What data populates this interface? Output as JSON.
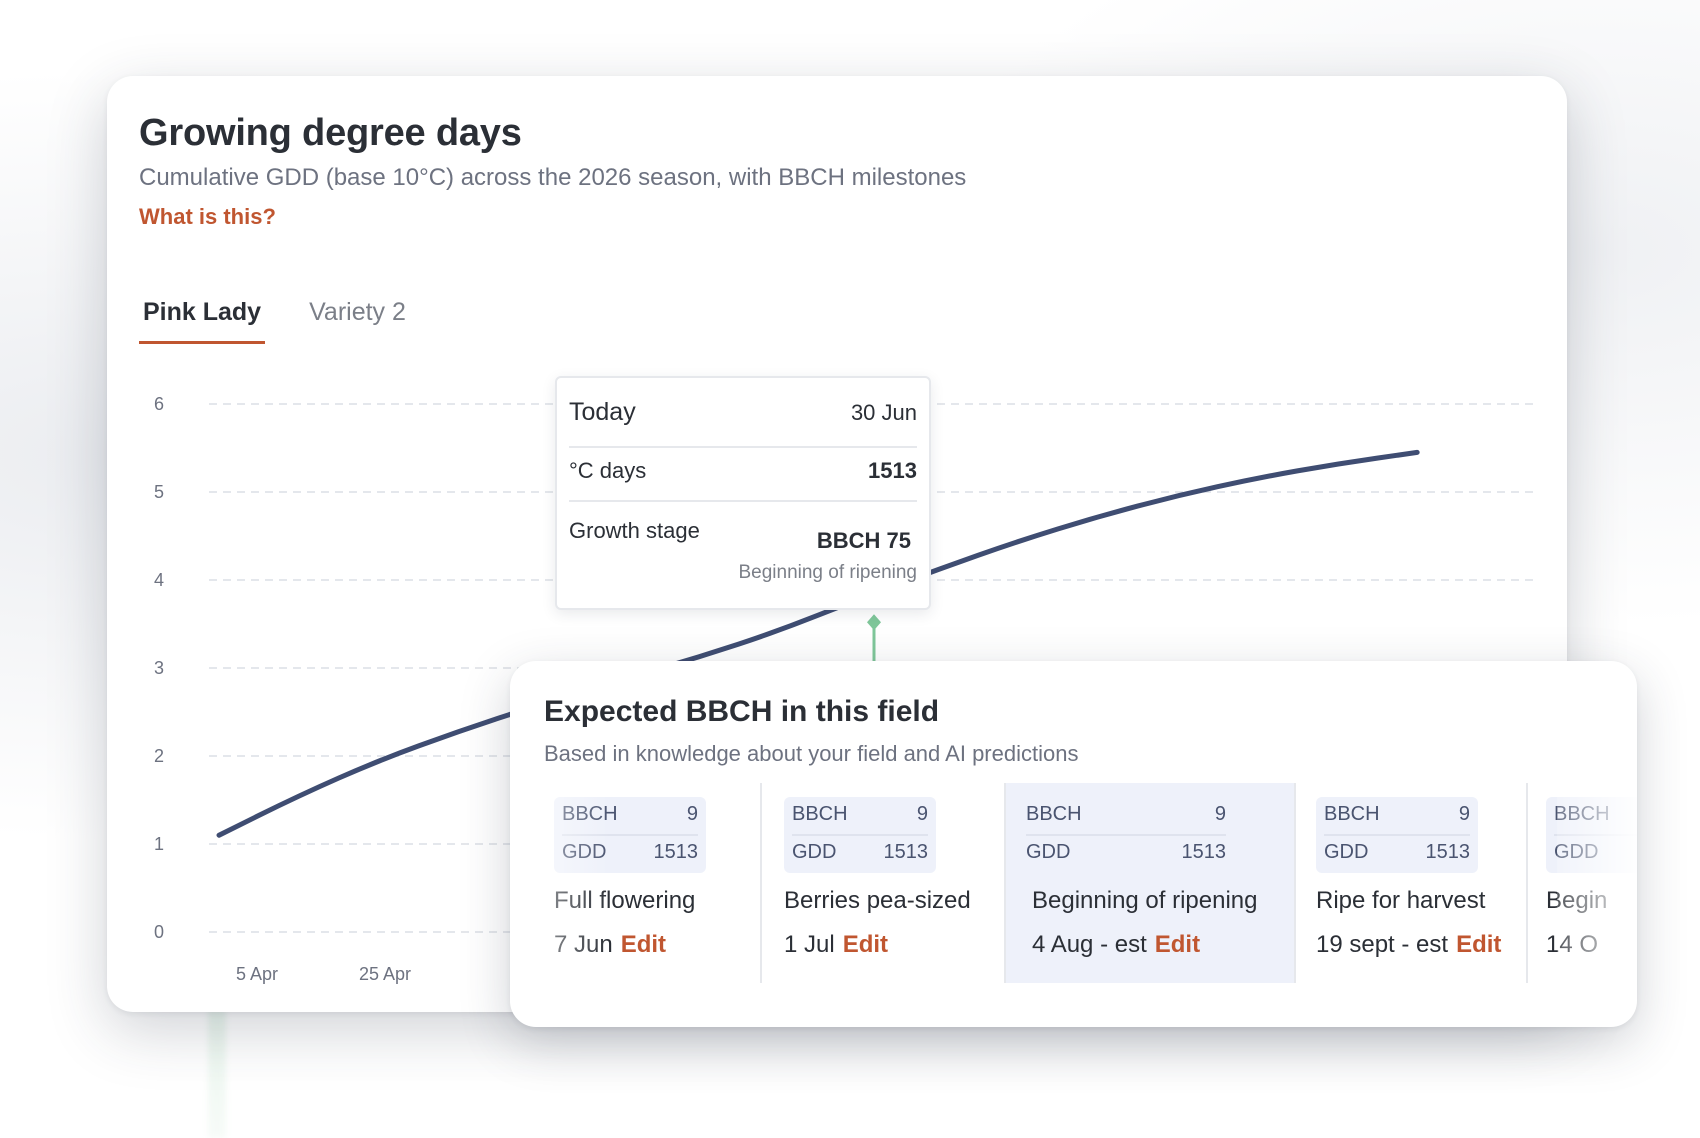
{
  "card": {
    "title": "Growing degree days",
    "subtitle": "Cumulative GDD (base 10°C) across the 2026 season, with BBCH milestones",
    "help_link": "What is this?"
  },
  "tabs": [
    {
      "label": "Pink Lady",
      "active": true
    },
    {
      "label": "Variety 2",
      "active": false
    }
  ],
  "chart_data": {
    "type": "line",
    "y_ticks": [
      "0",
      "1",
      "2",
      "3",
      "4",
      "5",
      "6"
    ],
    "ylim": [
      0,
      6
    ],
    "x_ticks": [
      "5 Apr",
      "25 Apr"
    ],
    "grid": true,
    "line_color": "#3f4d72",
    "marker_color": "#7fc79a",
    "series": [
      {
        "points": [
          {
            "d": 0,
            "y": 1.1
          },
          {
            "d": 20,
            "y": 1.55
          },
          {
            "d": 40,
            "y": 1.95
          },
          {
            "d": 60,
            "y": 2.28
          },
          {
            "d": 80,
            "y": 2.58
          },
          {
            "d": 100,
            "y": 2.86
          },
          {
            "d": 120,
            "y": 3.12
          },
          {
            "d": 140,
            "y": 3.42
          },
          {
            "d": 160,
            "y": 3.78
          },
          {
            "d": 180,
            "y": 4.12
          },
          {
            "d": 200,
            "y": 4.44
          },
          {
            "d": 220,
            "y": 4.72
          },
          {
            "d": 240,
            "y": 4.96
          },
          {
            "d": 260,
            "y": 5.16
          },
          {
            "d": 280,
            "y": 5.32
          },
          {
            "d": 300,
            "y": 5.45
          }
        ]
      }
    ],
    "today_marker": {
      "d": 164,
      "y": 3.52
    }
  },
  "tooltip": {
    "today_label": "Today",
    "today_date": "30 Jun",
    "degree_label": "°C days",
    "degree_value": "1513",
    "stage_label": "Growth stage",
    "stage_value": "BBCH 75",
    "stage_desc": "Beginning of ripening"
  },
  "bbch_card": {
    "title": "Expected BBCH in this field",
    "subtitle": "Based in knowledge about your field and AI predictions",
    "bbch_key": "BBCH",
    "gdd_key": "GDD",
    "edit_label": "Edit",
    "stages": [
      {
        "bbch": "9",
        "gdd": "1513",
        "name": "Full flowering",
        "date": "7 Jun"
      },
      {
        "bbch": "9",
        "gdd": "1513",
        "name": "Berries pea-sized",
        "date": "1 Jul"
      },
      {
        "bbch": "9",
        "gdd": "1513",
        "name": "Beginning of ripening",
        "date": "4 Aug - est"
      },
      {
        "bbch": "9",
        "gdd": "1513",
        "name": "Ripe for harvest",
        "date": "19 sept - est"
      },
      {
        "bbch": "",
        "gdd": "",
        "name": "Begin",
        "date": "14 O"
      }
    ],
    "colors": {
      "accent": "#c05630",
      "highlight": "#eef1fa",
      "chip_text": "#4a5470"
    }
  }
}
